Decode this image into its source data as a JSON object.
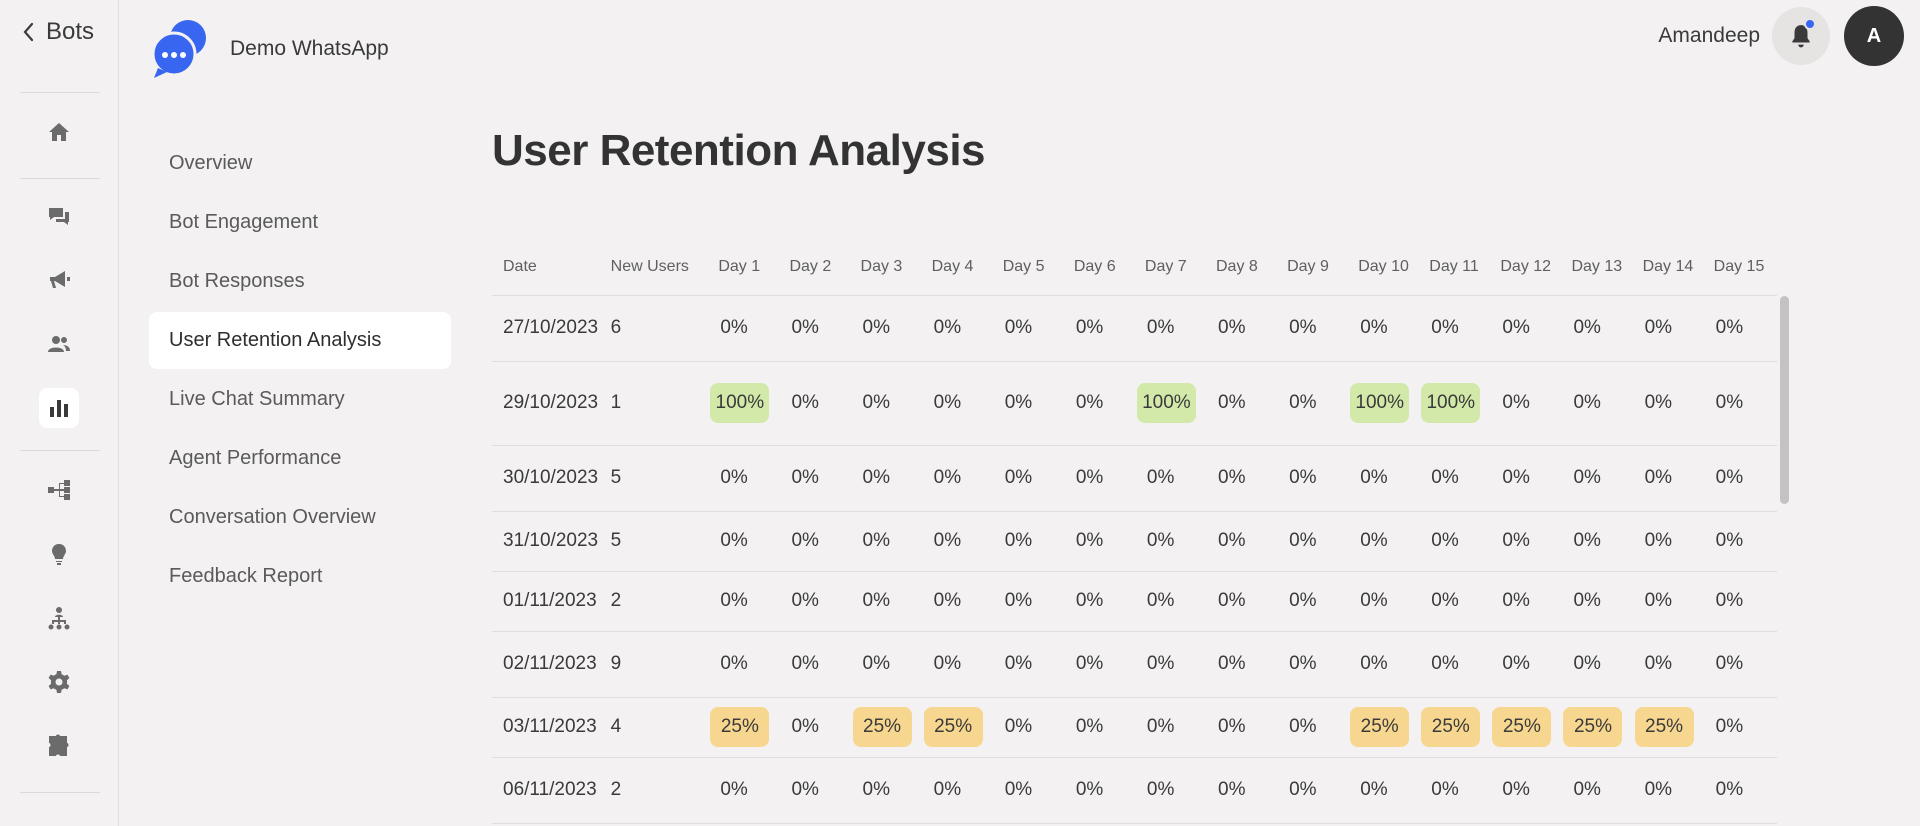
{
  "rail": {
    "back_label": "Bots",
    "icons": [
      "home-icon",
      "chat-icon",
      "megaphone-icon",
      "users-icon",
      "analytics-icon",
      "flow-icon",
      "bulb-icon",
      "hierarchy-icon",
      "gear-icon",
      "puzzle-icon"
    ],
    "active_icon": "analytics-icon"
  },
  "header": {
    "bot_name": "Demo WhatsApp",
    "user_name": "Amandeep",
    "avatar_initial": "A",
    "accent_color": "#3866f0"
  },
  "subnav": {
    "items": [
      "Overview",
      "Bot Engagement",
      "Bot Responses",
      "User Retention Analysis",
      "Live Chat Summary",
      "Agent Performance",
      "Conversation Overview",
      "Feedback Report"
    ],
    "active_index": 3
  },
  "main": {
    "title": "User Retention Analysis",
    "table": {
      "headers": [
        "Date",
        "New Users",
        "Day 1",
        "Day 2",
        "Day 3",
        "Day 4",
        "Day 5",
        "Day 6",
        "Day 7",
        "Day 8",
        "Day 9",
        "Day 10",
        "Day 11",
        "Day 12",
        "Day 13",
        "Day 14",
        "Day 15"
      ],
      "rows": [
        {
          "date": "27/10/2023",
          "new_users": "6",
          "values": [
            "0%",
            "0%",
            "0%",
            "0%",
            "0%",
            "0%",
            "0%",
            "0%",
            "0%",
            "0%",
            "0%",
            "0%",
            "0%",
            "0%",
            "0%"
          ]
        },
        {
          "date": "29/10/2023",
          "new_users": "1",
          "values": [
            "100%",
            "0%",
            "0%",
            "0%",
            "0%",
            "0%",
            "100%",
            "0%",
            "0%",
            "100%",
            "100%",
            "0%",
            "0%",
            "0%",
            "0%"
          ]
        },
        {
          "date": "30/10/2023",
          "new_users": "5",
          "values": [
            "0%",
            "0%",
            "0%",
            "0%",
            "0%",
            "0%",
            "0%",
            "0%",
            "0%",
            "0%",
            "0%",
            "0%",
            "0%",
            "0%",
            "0%"
          ]
        },
        {
          "date": "31/10/2023",
          "new_users": "5",
          "values": [
            "0%",
            "0%",
            "0%",
            "0%",
            "0%",
            "0%",
            "0%",
            "0%",
            "0%",
            "0%",
            "0%",
            "0%",
            "0%",
            "0%",
            "0%"
          ]
        },
        {
          "date": "01/11/2023",
          "new_users": "2",
          "values": [
            "0%",
            "0%",
            "0%",
            "0%",
            "0%",
            "0%",
            "0%",
            "0%",
            "0%",
            "0%",
            "0%",
            "0%",
            "0%",
            "0%",
            "0%"
          ]
        },
        {
          "date": "02/11/2023",
          "new_users": "9",
          "values": [
            "0%",
            "0%",
            "0%",
            "0%",
            "0%",
            "0%",
            "0%",
            "0%",
            "0%",
            "0%",
            "0%",
            "0%",
            "0%",
            "0%",
            "0%"
          ]
        },
        {
          "date": "03/11/2023",
          "new_users": "4",
          "values": [
            "25%",
            "0%",
            "25%",
            "25%",
            "0%",
            "0%",
            "0%",
            "0%",
            "0%",
            "25%",
            "25%",
            "25%",
            "25%",
            "25%",
            "0%"
          ]
        },
        {
          "date": "06/11/2023",
          "new_users": "2",
          "values": [
            "0%",
            "0%",
            "0%",
            "0%",
            "0%",
            "0%",
            "0%",
            "0%",
            "0%",
            "0%",
            "0%",
            "0%",
            "0%",
            "0%",
            "0%"
          ]
        }
      ],
      "colors": {
        "high": "#d3e9a9",
        "mid": "#f7d690"
      }
    }
  }
}
